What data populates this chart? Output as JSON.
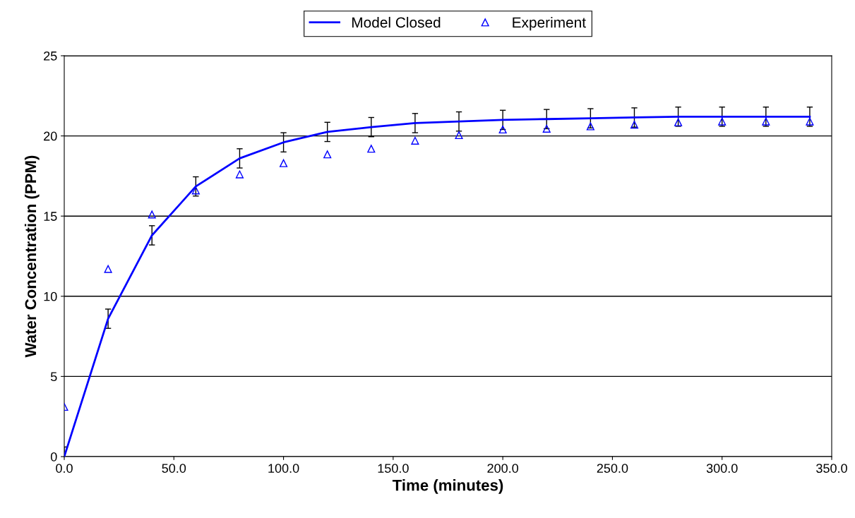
{
  "chart_data": {
    "type": "line",
    "xlabel": "Time (minutes)",
    "ylabel": "Water Concentration (PPM)",
    "x": [
      0,
      20,
      40,
      60,
      80,
      100,
      120,
      140,
      160,
      180,
      200,
      220,
      240,
      260,
      280,
      300,
      320,
      340
    ],
    "series": [
      {
        "name": "Model Closed",
        "color": "#0000ff",
        "marker": "none",
        "line_style": "solid",
        "values": [
          0,
          8.6,
          13.8,
          16.85,
          18.6,
          19.6,
          20.25,
          20.55,
          20.8,
          20.9,
          21.0,
          21.05,
          21.1,
          21.15,
          21.2,
          21.2,
          21.2,
          21.2
        ],
        "errors": [
          0.6,
          0.6,
          0.6,
          0.6,
          0.6,
          0.6,
          0.6,
          0.6,
          0.6,
          0.6,
          0.6,
          0.6,
          0.6,
          0.6,
          0.6,
          0.6,
          0.6,
          0.6
        ]
      },
      {
        "name": "Experiment",
        "type": "scatter",
        "color": "#0000ff",
        "marker": "triangle",
        "values": [
          3.1,
          11.7,
          15.1,
          16.6,
          17.6,
          18.3,
          18.85,
          19.2,
          19.7,
          20.05,
          20.4,
          20.45,
          20.6,
          20.7,
          20.85,
          20.9,
          20.9,
          20.9
        ]
      }
    ],
    "xlim": [
      0,
      350
    ],
    "xticks": [
      {
        "value": 0,
        "label": "0.0"
      },
      {
        "value": 50,
        "label": "50.0"
      },
      {
        "value": 100,
        "label": "100.0"
      },
      {
        "value": 150,
        "label": "150.0"
      },
      {
        "value": 200,
        "label": "200.0"
      },
      {
        "value": 250,
        "label": "250.0"
      },
      {
        "value": 300,
        "label": "300.0"
      },
      {
        "value": 350,
        "label": "350.0"
      }
    ],
    "ylim": [
      0,
      25
    ],
    "yticks": [
      0,
      5,
      10,
      15,
      20,
      25
    ],
    "grid": "y",
    "legend": "top"
  }
}
